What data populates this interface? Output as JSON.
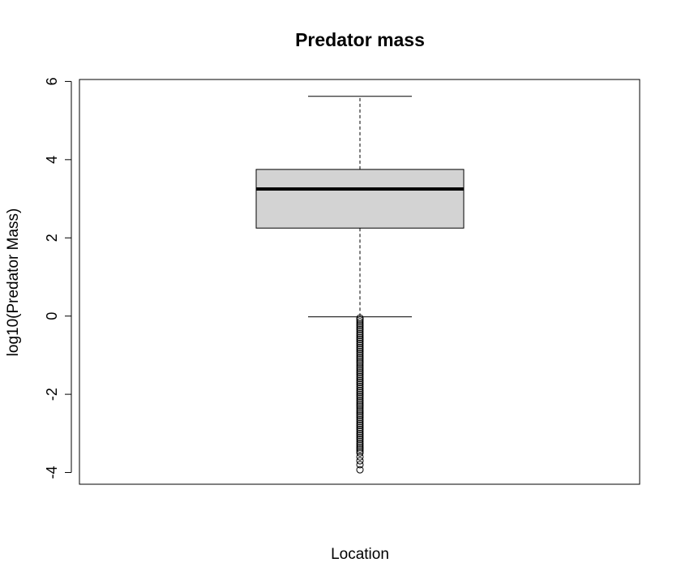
{
  "chart_data": {
    "type": "boxplot",
    "title": "Predator mass",
    "xlabel": "Location",
    "ylabel": "log10(Predator Mass)",
    "ylim": [
      -4.3,
      6.05
    ],
    "yticks": [
      -4,
      -2,
      0,
      2,
      4,
      6
    ],
    "ytick_labels": [
      "-4",
      "-2",
      "0",
      "2",
      "4",
      "6"
    ],
    "box": {
      "whisker_low": -0.02,
      "q1": 2.25,
      "median": 3.25,
      "q3": 3.75,
      "whisker_high": 5.62
    },
    "outliers": [
      -0.05,
      -0.1,
      -0.15,
      -0.2,
      -0.25,
      -0.3,
      -0.35,
      -0.4,
      -0.45,
      -0.5,
      -0.55,
      -0.6,
      -0.65,
      -0.7,
      -0.75,
      -0.8,
      -0.85,
      -0.9,
      -0.95,
      -1.0,
      -1.05,
      -1.1,
      -1.15,
      -1.2,
      -1.25,
      -1.3,
      -1.35,
      -1.4,
      -1.45,
      -1.5,
      -1.55,
      -1.6,
      -1.65,
      -1.7,
      -1.75,
      -1.8,
      -1.85,
      -1.9,
      -1.95,
      -2.0,
      -2.05,
      -2.1,
      -2.15,
      -2.2,
      -2.25,
      -2.3,
      -2.35,
      -2.4,
      -2.45,
      -2.5,
      -2.55,
      -2.6,
      -2.65,
      -2.7,
      -2.75,
      -2.8,
      -2.85,
      -2.9,
      -2.95,
      -3.0,
      -3.05,
      -3.1,
      -3.15,
      -3.2,
      -3.25,
      -3.3,
      -3.35,
      -3.4,
      -3.45,
      -3.5,
      -3.6,
      -3.7,
      -3.8,
      -3.93
    ],
    "grid": false,
    "colors": {
      "box_fill": "#d3d3d3",
      "stroke": "#000000"
    }
  }
}
